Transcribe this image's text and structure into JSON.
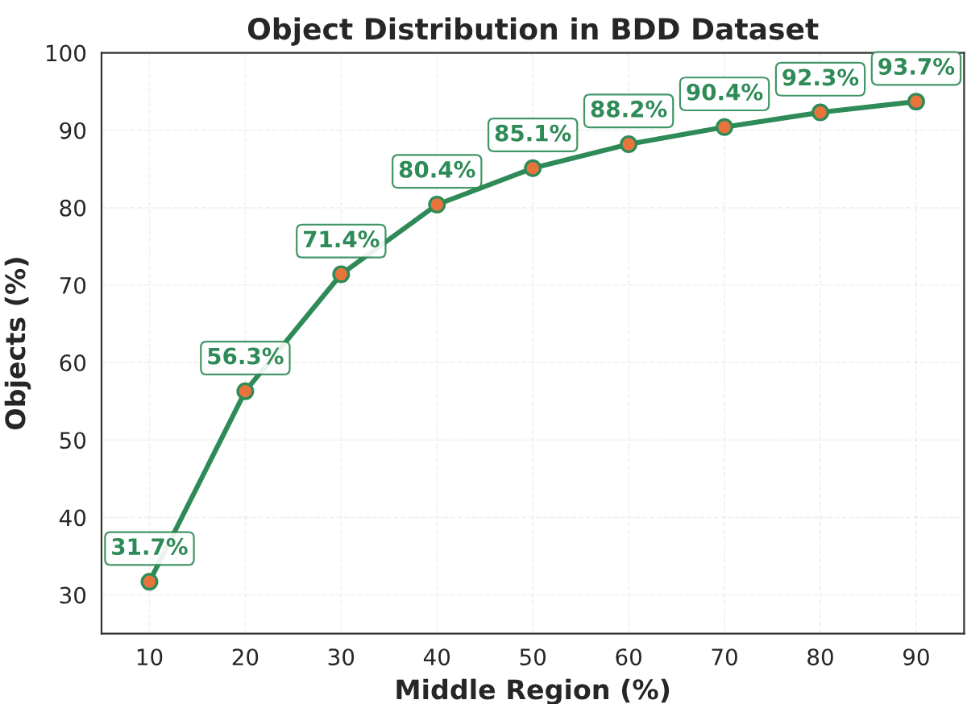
{
  "chart_data": {
    "type": "line",
    "title": "Object Distribution in BDD Dataset",
    "xlabel": "Middle Region (%)",
    "ylabel": "Objects (%)",
    "x": [
      10,
      20,
      30,
      40,
      50,
      60,
      70,
      80,
      90
    ],
    "series": [
      {
        "color": "#2e8b57",
        "values": [
          31.7,
          56.3,
          71.4,
          80.4,
          85.1,
          88.2,
          90.4,
          92.3,
          93.7
        ],
        "value_labels": [
          "31.7%",
          "56.3%",
          "71.4%",
          "80.4%",
          "85.1%",
          "88.2%",
          "90.4%",
          "92.3%",
          "93.7%"
        ]
      }
    ],
    "marker": "circle",
    "line_style": "solid",
    "xlim": [
      5,
      95
    ],
    "xticks": [
      10,
      20,
      30,
      40,
      50,
      60,
      70,
      80,
      90
    ],
    "ylim": [
      25,
      100
    ],
    "yticks": [
      30,
      40,
      50,
      60,
      70,
      80,
      90,
      100
    ],
    "grid": true
  }
}
